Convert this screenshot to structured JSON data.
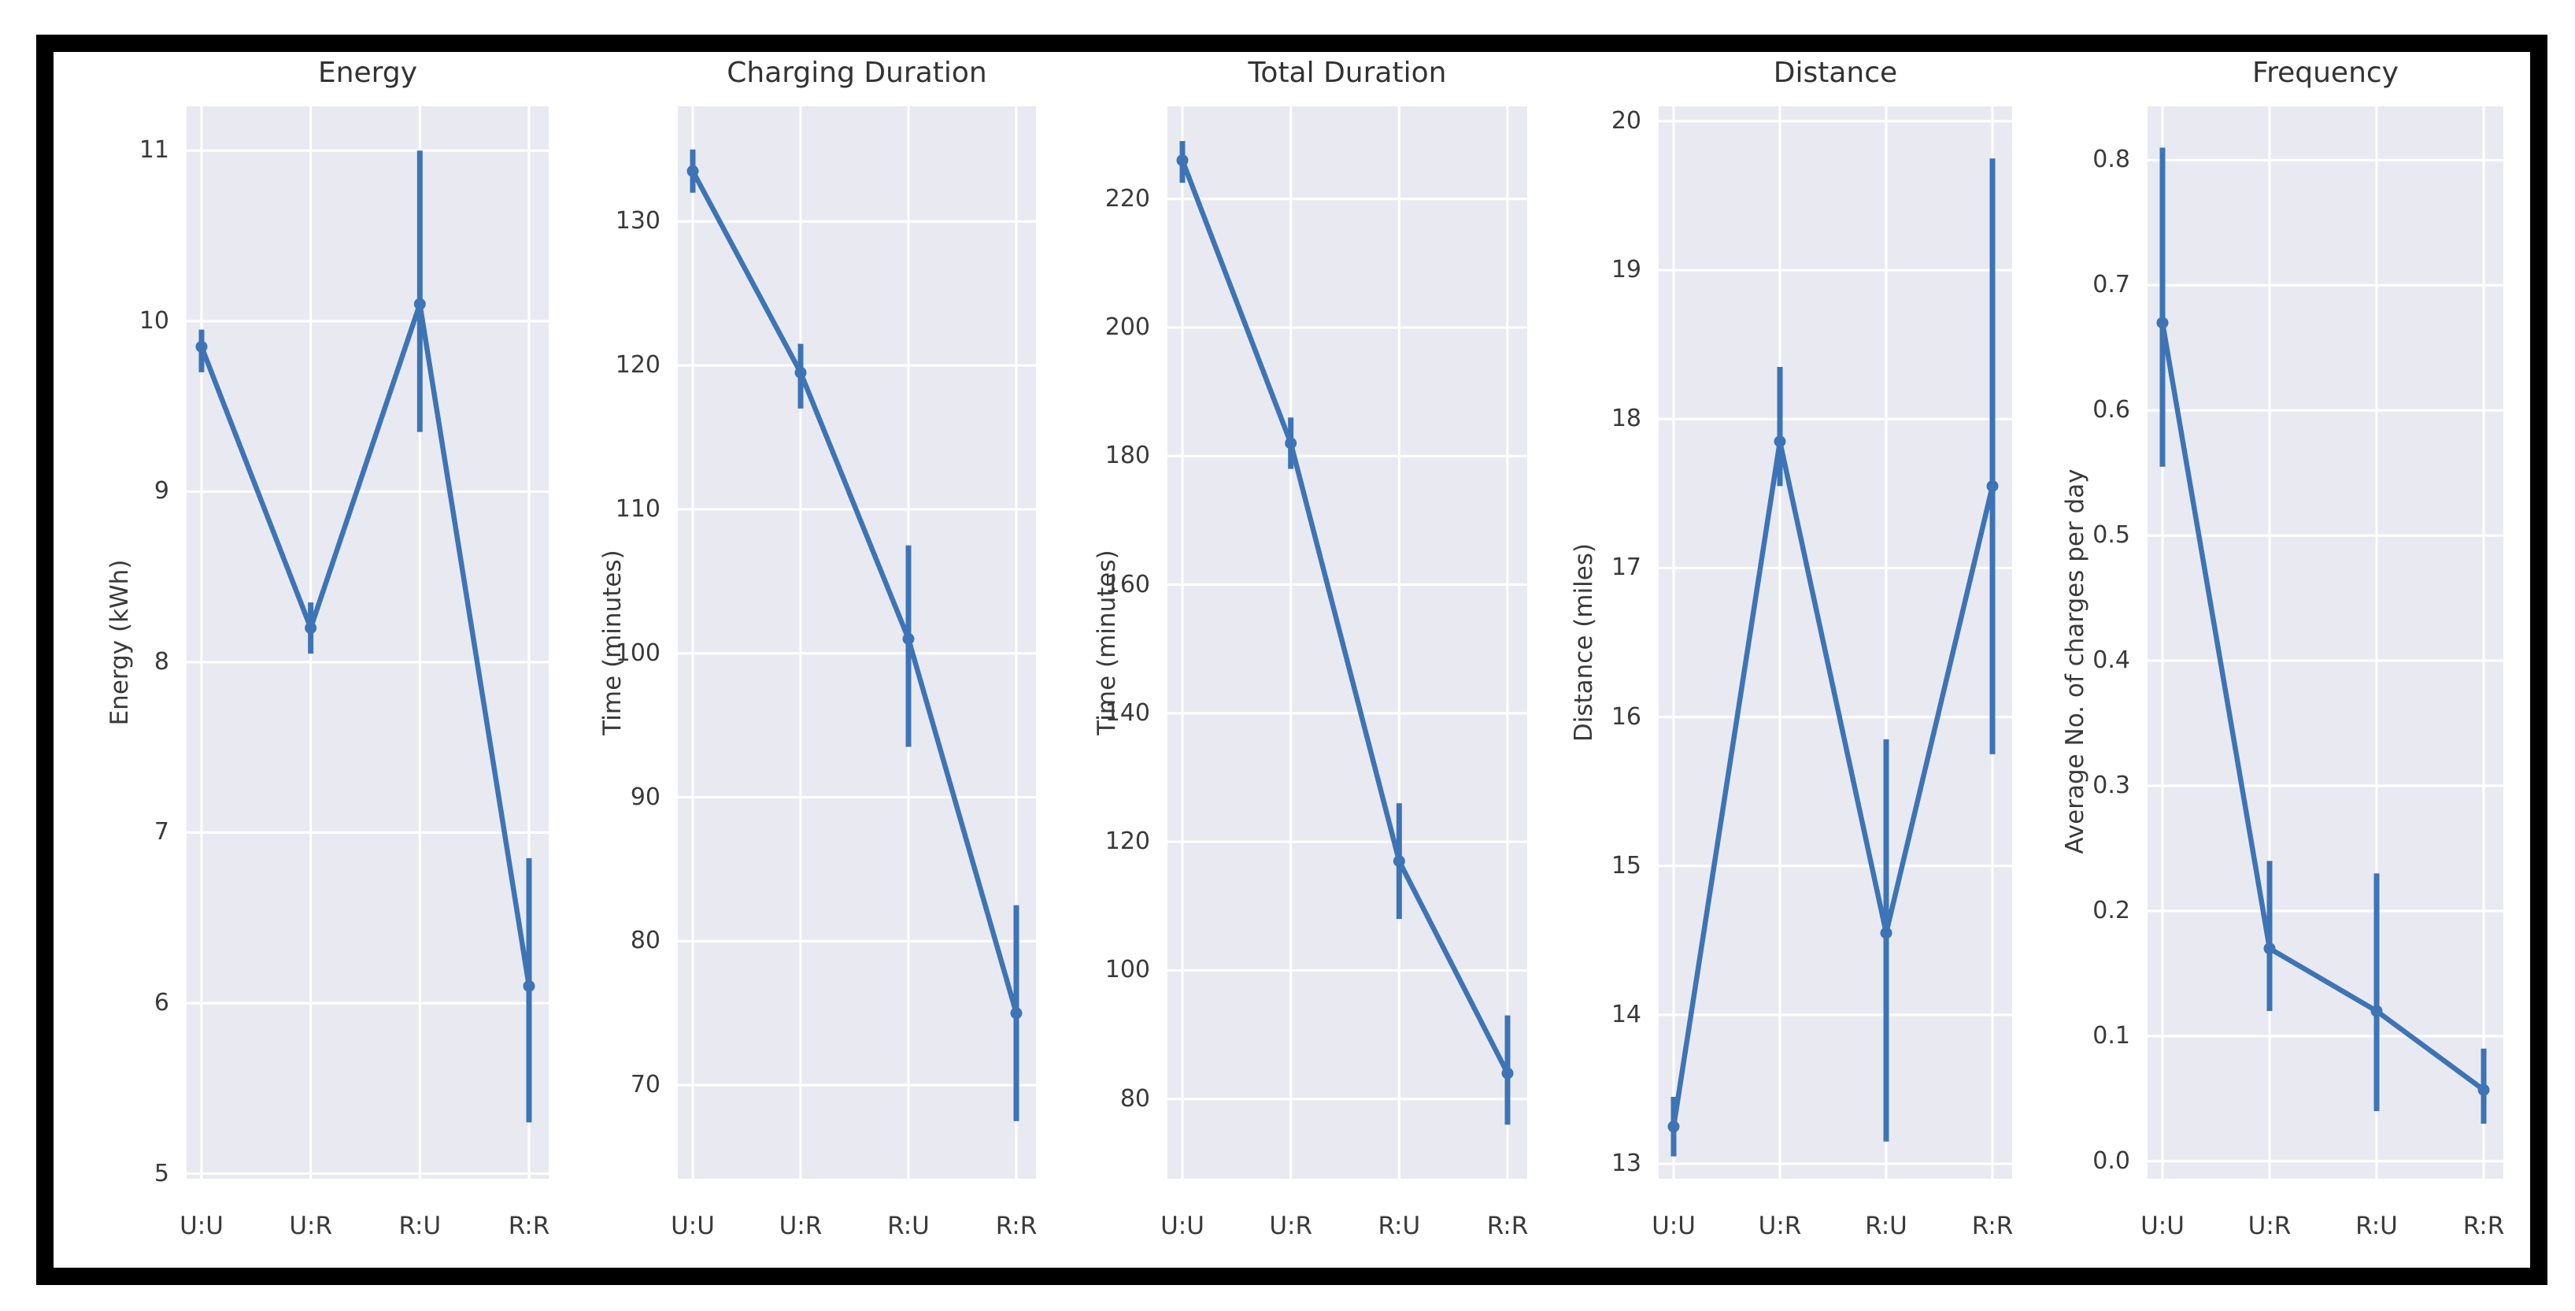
{
  "figure": {
    "background": "#ffffff",
    "frame_color": "#000000",
    "plot_background": "#e9eaf1",
    "grid_color": "#ffffff",
    "line_color": "#3d74b5",
    "text_color": "#3a3a3a",
    "categories": [
      "U:U",
      "U:R",
      "R:U",
      "R:R"
    ]
  },
  "chart_data": [
    {
      "type": "line",
      "title": "Energy",
      "ylabel": "Energy (kWh)",
      "categories": [
        "U:U",
        "U:R",
        "R:U",
        "R:R"
      ],
      "values": [
        9.85,
        8.2,
        10.1,
        6.1
      ],
      "err_low": [
        9.7,
        8.05,
        9.35,
        5.3
      ],
      "err_high": [
        9.95,
        8.35,
        11.0,
        6.85
      ],
      "yticks": [
        5,
        6,
        7,
        8,
        9,
        10,
        11
      ],
      "ytick_labels": [
        "5",
        "6",
        "7",
        "8",
        "9",
        "10",
        "11"
      ],
      "ylim": [
        4.97,
        11.26
      ],
      "grid": true,
      "legend": "none"
    },
    {
      "type": "line",
      "title": "Charging Duration",
      "ylabel": "Time (minutes)",
      "categories": [
        "U:U",
        "U:R",
        "R:U",
        "R:R"
      ],
      "values": [
        133.5,
        119.5,
        101,
        75
      ],
      "err_low": [
        132,
        117,
        93.5,
        67.5
      ],
      "err_high": [
        135,
        121.5,
        107.5,
        82.5
      ],
      "yticks": [
        70,
        80,
        90,
        100,
        110,
        120,
        130
      ],
      "ytick_labels": [
        "70",
        "80",
        "90",
        "100",
        "110",
        "120",
        "130"
      ],
      "ylim": [
        63.5,
        138
      ],
      "grid": true,
      "legend": "none"
    },
    {
      "type": "line",
      "title": "Total Duration",
      "ylabel": "Time (minutes)",
      "categories": [
        "U:U",
        "U:R",
        "R:U",
        "R:R"
      ],
      "values": [
        226,
        182,
        117,
        84
      ],
      "err_low": [
        222.5,
        178,
        108,
        76
      ],
      "err_high": [
        229,
        186,
        126,
        93
      ],
      "yticks": [
        80,
        100,
        120,
        140,
        160,
        180,
        200,
        220
      ],
      "ytick_labels": [
        "80",
        "100",
        "120",
        "140",
        "160",
        "180",
        "200",
        "220"
      ],
      "ylim": [
        67.6,
        234.4
      ],
      "grid": true,
      "legend": "none"
    },
    {
      "type": "line",
      "title": "Distance",
      "ylabel": "Distance (miles)",
      "categories": [
        "U:U",
        "U:R",
        "R:U",
        "R:R"
      ],
      "values": [
        13.25,
        17.85,
        14.55,
        17.55
      ],
      "err_low": [
        13.05,
        17.55,
        13.15,
        15.75
      ],
      "err_high": [
        13.45,
        18.35,
        15.85,
        19.75
      ],
      "yticks": [
        13,
        14,
        15,
        16,
        17,
        18,
        19,
        20
      ],
      "ytick_labels": [
        "13",
        "14",
        "15",
        "16",
        "17",
        "18",
        "19",
        "20"
      ],
      "ylim": [
        12.9,
        20.1
      ],
      "grid": true,
      "legend": "none"
    },
    {
      "type": "line",
      "title": "Frequency",
      "ylabel": "Average No. of charges per day",
      "categories": [
        "U:U",
        "U:R",
        "R:U",
        "R:R"
      ],
      "values": [
        0.67,
        0.17,
        0.12,
        0.057
      ],
      "err_low": [
        0.555,
        0.12,
        0.04,
        0.03
      ],
      "err_high": [
        0.81,
        0.24,
        0.23,
        0.09
      ],
      "yticks": [
        0.0,
        0.1,
        0.2,
        0.3,
        0.4,
        0.5,
        0.6,
        0.7,
        0.8
      ],
      "ytick_labels": [
        "0.0",
        "0.1",
        "0.2",
        "0.3",
        "0.4",
        "0.5",
        "0.6",
        "0.7",
        "0.8"
      ],
      "ylim": [
        -0.014,
        0.843
      ],
      "grid": true,
      "legend": "none"
    }
  ]
}
